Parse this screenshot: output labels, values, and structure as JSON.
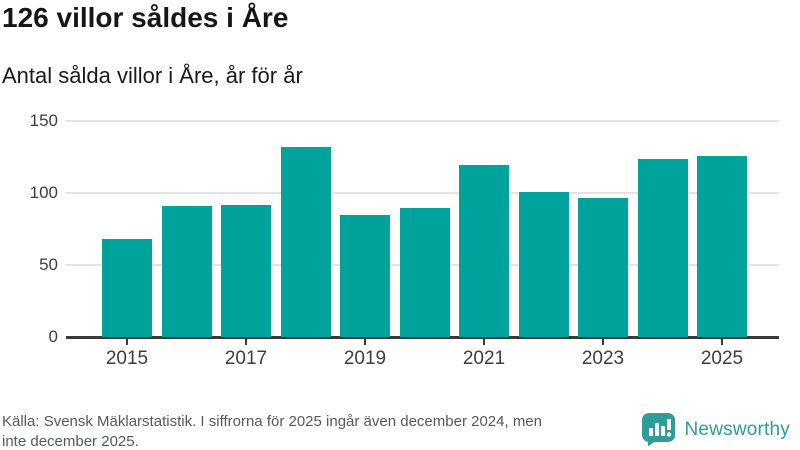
{
  "header": {
    "title": "126 villor såldes i Åre",
    "subtitle": "Antal sålda villor i Åre, år för år"
  },
  "chart_data": {
    "type": "bar",
    "title": "126 villor såldes i Åre",
    "subtitle": "Antal sålda villor i Åre, år för år",
    "categories": [
      2015,
      2016,
      2017,
      2018,
      2019,
      2020,
      2021,
      2022,
      2023,
      2024,
      2025
    ],
    "values": [
      68,
      91,
      92,
      132,
      85,
      90,
      120,
      101,
      97,
      124,
      126
    ],
    "series_name": "Antal sålda villor",
    "xlabel": "",
    "ylabel": "",
    "ylim": [
      0,
      150
    ],
    "yticks": [
      0,
      50,
      100,
      150
    ],
    "x_tick_labels": [
      "2015",
      "2017",
      "2019",
      "2021",
      "2023",
      "2025"
    ],
    "grid": "horizontal-only",
    "legend": "none",
    "bar_color": "#00a29c"
  },
  "footer": {
    "source_line1": "Källa: Svensk Mäklarstatistik. I siffrorna för 2025 ingår även december 2024, men",
    "source_line2": "inte december 2025.",
    "brand": "Newsworthy",
    "brand_color": "#2f9d97"
  },
  "colors": {
    "bar": "#00a29c",
    "gridline": "#e3e3e3",
    "axis": "#3a3a3a",
    "title_text": "#161616",
    "footer_text": "#54595d",
    "logo_teal": "#2f9d97"
  }
}
